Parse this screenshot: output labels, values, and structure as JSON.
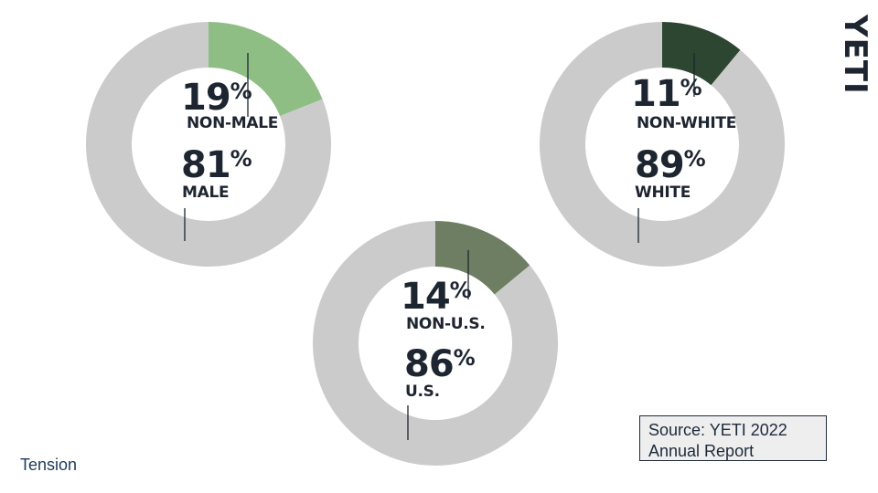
{
  "brand": {
    "logo_text": "YETI"
  },
  "chart_data": [
    {
      "type": "pie",
      "labels": [
        "NON-MALE",
        "MALE"
      ],
      "values": [
        19,
        81
      ],
      "colors": [
        "#8fbe85",
        "#cbcbcb"
      ],
      "display": [
        "19%",
        "81%"
      ]
    },
    {
      "type": "pie",
      "labels": [
        "NON-WHITE",
        "WHITE"
      ],
      "values": [
        11,
        89
      ],
      "colors": [
        "#2c4632",
        "#cbcbcb"
      ],
      "display": [
        "11%",
        "89%"
      ]
    },
    {
      "type": "pie",
      "labels": [
        "NON-U.S.",
        "U.S."
      ],
      "values": [
        14,
        86
      ],
      "colors": [
        "#6e7e62",
        "#cbcbcb"
      ],
      "display": [
        "14%",
        "86%"
      ]
    }
  ],
  "source": {
    "line1": "Source: YETI 2022",
    "line2": "Annual Report"
  },
  "footer": {
    "text": "Tension"
  }
}
